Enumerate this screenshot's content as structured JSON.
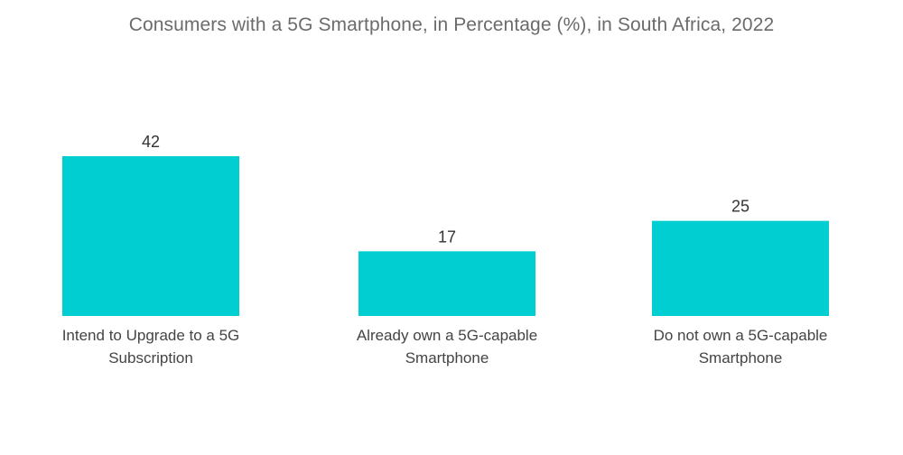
{
  "chart_data": {
    "type": "bar",
    "title": "Consumers with a 5G Smartphone, in Percentage (%), in South Africa, 2022",
    "categories": [
      [
        "Intend to Upgrade to a 5G",
        "Subscription"
      ],
      [
        "Already own a 5G-capable",
        "Smartphone"
      ],
      [
        "Do not own a 5G-capable",
        "Smartphone"
      ]
    ],
    "values": [
      42,
      17,
      25
    ],
    "xlabel": "",
    "ylabel": "",
    "ylim": [
      0,
      42
    ],
    "grid": false,
    "legend": "none",
    "bar_color": "#00ced1"
  }
}
